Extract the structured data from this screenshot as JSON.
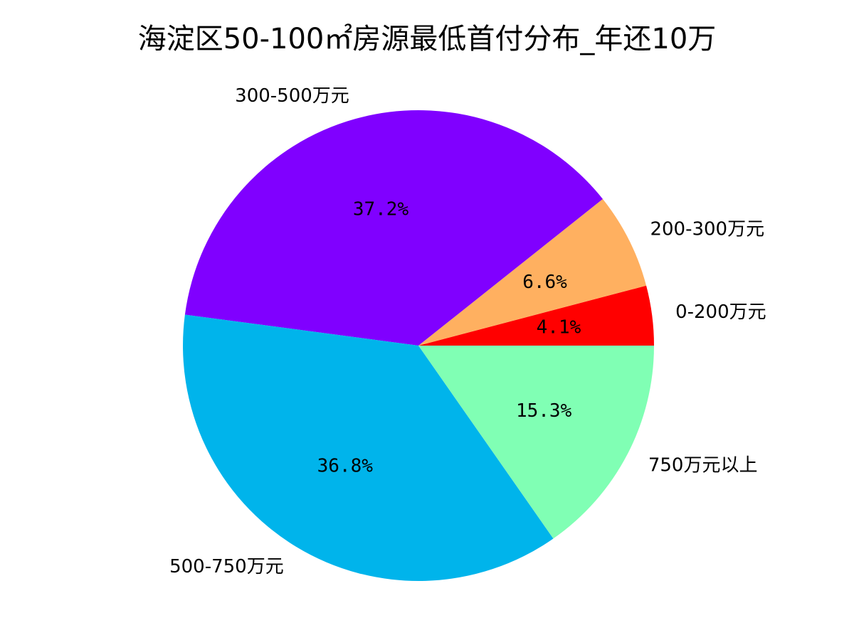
{
  "chart_data": {
    "type": "pie",
    "title": "海淀区50-100㎡房源最低首付分布_年还10万",
    "categories": [
      "0-200万元",
      "200-300万元",
      "300-500万元",
      "500-750万元",
      "750万元以上"
    ],
    "values": [
      4.1,
      6.6,
      37.2,
      36.8,
      15.3
    ],
    "value_labels": [
      "4.1%",
      "6.6%",
      "37.2%",
      "36.8%",
      "15.3%"
    ],
    "colors": [
      "#ff0000",
      "#ffb060",
      "#8000ff",
      "#00b4eb",
      "#80ffb4"
    ],
    "start_angle": 0,
    "direction": "counterclockwise"
  }
}
